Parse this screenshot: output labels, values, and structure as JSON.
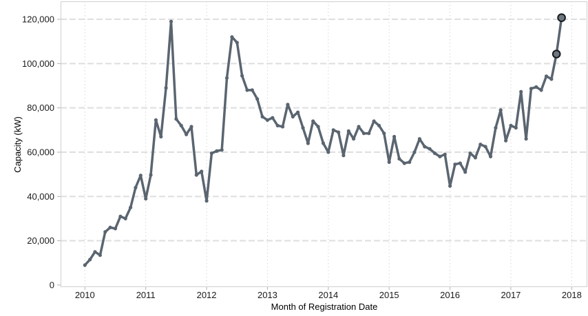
{
  "chart_data": {
    "type": "line",
    "title": "",
    "xlabel": "Month of Registration Date",
    "ylabel": "Capacity (kW)",
    "legend": "none",
    "grid": {
      "horizontal": "dashed",
      "vertical": "dotted",
      "on": true
    },
    "x_tick_labels": [
      "2010",
      "2011",
      "2012",
      "2013",
      "2014",
      "2015",
      "2016",
      "2017",
      "2018"
    ],
    "y_ticks": [
      0,
      20000,
      40000,
      60000,
      80000,
      100000,
      120000
    ],
    "y_tick_labels": [
      "0",
      "20,000",
      "40,000",
      "60,000",
      "80,000",
      "100,000",
      "120,000"
    ],
    "ylim": [
      0,
      128000
    ],
    "colors": {
      "line": "#5a6570",
      "marker": "#5a6570",
      "highlight_fill": "#6e7881",
      "highlight_stroke": "#16191d",
      "grid": "#dedede",
      "vgrid": "#d6d6d6",
      "border": "#cfcfcf",
      "tick": "#b0b0b0",
      "label": "#1a1a1a"
    },
    "highlighted_points": [
      "2017-10",
      "2017-11"
    ],
    "series": [
      {
        "name": "Capacity",
        "points": [
          {
            "date": "2010-01",
            "value": 9000
          },
          {
            "date": "2010-02",
            "value": 11500
          },
          {
            "date": "2010-03",
            "value": 15000
          },
          {
            "date": "2010-04",
            "value": 13500
          },
          {
            "date": "2010-05",
            "value": 24000
          },
          {
            "date": "2010-06",
            "value": 26000
          },
          {
            "date": "2010-07",
            "value": 25500
          },
          {
            "date": "2010-08",
            "value": 31000
          },
          {
            "date": "2010-09",
            "value": 30000
          },
          {
            "date": "2010-10",
            "value": 35000
          },
          {
            "date": "2010-11",
            "value": 44000
          },
          {
            "date": "2010-12",
            "value": 49500
          },
          {
            "date": "2011-01",
            "value": 39000
          },
          {
            "date": "2011-02",
            "value": 49700
          },
          {
            "date": "2011-03",
            "value": 74500
          },
          {
            "date": "2011-04",
            "value": 67000
          },
          {
            "date": "2011-05",
            "value": 89000
          },
          {
            "date": "2011-06",
            "value": 119000
          },
          {
            "date": "2011-07",
            "value": 75000
          },
          {
            "date": "2011-08",
            "value": 72000
          },
          {
            "date": "2011-09",
            "value": 68000
          },
          {
            "date": "2011-10",
            "value": 71500
          },
          {
            "date": "2011-11",
            "value": 49700
          },
          {
            "date": "2011-12",
            "value": 51300
          },
          {
            "date": "2012-01",
            "value": 38000
          },
          {
            "date": "2012-02",
            "value": 59500
          },
          {
            "date": "2012-03",
            "value": 60500
          },
          {
            "date": "2012-04",
            "value": 61000
          },
          {
            "date": "2012-05",
            "value": 93500
          },
          {
            "date": "2012-06",
            "value": 112000
          },
          {
            "date": "2012-07",
            "value": 109500
          },
          {
            "date": "2012-08",
            "value": 94500
          },
          {
            "date": "2012-09",
            "value": 88000
          },
          {
            "date": "2012-10",
            "value": 88000
          },
          {
            "date": "2012-11",
            "value": 84000
          },
          {
            "date": "2012-12",
            "value": 76000
          },
          {
            "date": "2013-01",
            "value": 74500
          },
          {
            "date": "2013-02",
            "value": 75500
          },
          {
            "date": "2013-03",
            "value": 72000
          },
          {
            "date": "2013-04",
            "value": 71500
          },
          {
            "date": "2013-05",
            "value": 81500
          },
          {
            "date": "2013-06",
            "value": 76000
          },
          {
            "date": "2013-07",
            "value": 78000
          },
          {
            "date": "2013-08",
            "value": 71000
          },
          {
            "date": "2013-09",
            "value": 64000
          },
          {
            "date": "2013-10",
            "value": 74000
          },
          {
            "date": "2013-11",
            "value": 71500
          },
          {
            "date": "2013-12",
            "value": 64000
          },
          {
            "date": "2014-01",
            "value": 60000
          },
          {
            "date": "2014-02",
            "value": 70000
          },
          {
            "date": "2014-03",
            "value": 69000
          },
          {
            "date": "2014-04",
            "value": 58500
          },
          {
            "date": "2014-05",
            "value": 69500
          },
          {
            "date": "2014-06",
            "value": 66000
          },
          {
            "date": "2014-07",
            "value": 71500
          },
          {
            "date": "2014-08",
            "value": 68500
          },
          {
            "date": "2014-09",
            "value": 68500
          },
          {
            "date": "2014-10",
            "value": 74000
          },
          {
            "date": "2014-11",
            "value": 72000
          },
          {
            "date": "2014-12",
            "value": 68500
          },
          {
            "date": "2015-01",
            "value": 55500
          },
          {
            "date": "2015-02",
            "value": 67000
          },
          {
            "date": "2015-03",
            "value": 57000
          },
          {
            "date": "2015-04",
            "value": 55000
          },
          {
            "date": "2015-05",
            "value": 55500
          },
          {
            "date": "2015-06",
            "value": 60000
          },
          {
            "date": "2015-07",
            "value": 66000
          },
          {
            "date": "2015-08",
            "value": 62500
          },
          {
            "date": "2015-09",
            "value": 61500
          },
          {
            "date": "2015-10",
            "value": 59500
          },
          {
            "date": "2015-11",
            "value": 58000
          },
          {
            "date": "2015-12",
            "value": 59000
          },
          {
            "date": "2016-01",
            "value": 44700
          },
          {
            "date": "2016-02",
            "value": 54500
          },
          {
            "date": "2016-03",
            "value": 55000
          },
          {
            "date": "2016-04",
            "value": 51000
          },
          {
            "date": "2016-05",
            "value": 59500
          },
          {
            "date": "2016-06",
            "value": 57500
          },
          {
            "date": "2016-07",
            "value": 63500
          },
          {
            "date": "2016-08",
            "value": 62500
          },
          {
            "date": "2016-09",
            "value": 58000
          },
          {
            "date": "2016-10",
            "value": 71000
          },
          {
            "date": "2016-11",
            "value": 79000
          },
          {
            "date": "2016-12",
            "value": 65200
          },
          {
            "date": "2017-01",
            "value": 72000
          },
          {
            "date": "2017-02",
            "value": 71000
          },
          {
            "date": "2017-03",
            "value": 87300
          },
          {
            "date": "2017-04",
            "value": 66000
          },
          {
            "date": "2017-05",
            "value": 88700
          },
          {
            "date": "2017-06",
            "value": 89400
          },
          {
            "date": "2017-07",
            "value": 88000
          },
          {
            "date": "2017-08",
            "value": 94300
          },
          {
            "date": "2017-09",
            "value": 93000
          },
          {
            "date": "2017-10",
            "value": 104300
          },
          {
            "date": "2017-11",
            "value": 120700
          }
        ]
      }
    ]
  }
}
